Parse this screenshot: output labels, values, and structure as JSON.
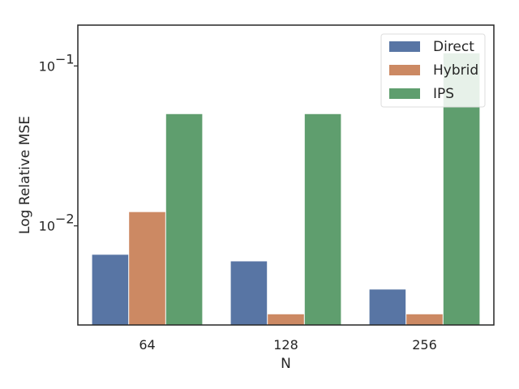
{
  "chart_data": {
    "type": "bar",
    "xlabel": "N",
    "ylabel": "Log Relative MSE",
    "yscale": "log",
    "ylim": [
      0.0024,
      0.18
    ],
    "y_ticks": [
      {
        "value": 0.01,
        "label_base": "10",
        "label_exp": "−2"
      },
      {
        "value": 0.1,
        "label_base": "10",
        "label_exp": "−1"
      }
    ],
    "categories": [
      "64",
      "128",
      "256"
    ],
    "series": [
      {
        "name": "Direct",
        "color": "#5875a4",
        "values": [
          0.0066,
          0.006,
          0.004
        ]
      },
      {
        "name": "Hybrid",
        "color": "#cc8963",
        "values": [
          0.0122,
          0.0028,
          0.0028
        ]
      },
      {
        "name": "IPS",
        "color": "#5f9e6e",
        "values": [
          0.05,
          0.05,
          0.12
        ]
      }
    ],
    "legend_position": "top-right",
    "grid": false
  }
}
